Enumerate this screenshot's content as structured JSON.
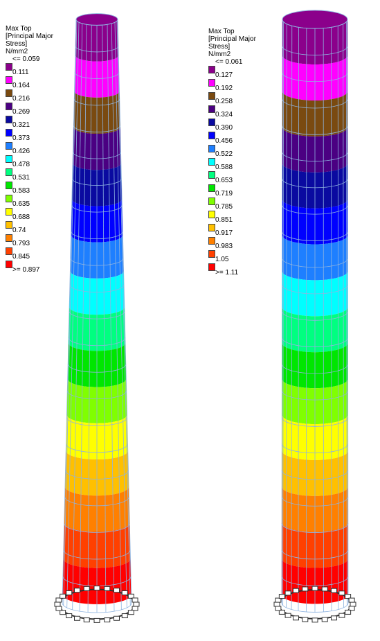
{
  "colors": [
    "#8b008b",
    "#ff00ff",
    "#7a4a10",
    "#4b0082",
    "#0a0aa0",
    "#0000ff",
    "#1e7fff",
    "#00ffff",
    "#00ff80",
    "#00e600",
    "#80ff00",
    "#ffff00",
    "#ffc000",
    "#ff8000",
    "#ff4000",
    "#ff0000"
  ],
  "mesh_color": "#8fb4e0",
  "support_color": "#303030",
  "legends": [
    {
      "title_lines": [
        "Max Top",
        "[Principal Major",
        "Stress]",
        "N/mm2"
      ],
      "labels": [
        "<= 0.059",
        "0.111",
        "0.164",
        "0.216",
        "0.269",
        "0.321",
        "0.373",
        "0.426",
        "0.478",
        "0.531",
        "0.583",
        "0.635",
        "0.688",
        "0.74",
        "0.793",
        "0.845",
        ">= 0.897"
      ]
    },
    {
      "title_lines": [
        "Max Top",
        "[Principal Major",
        "Stress]",
        "N/mm2"
      ],
      "labels": [
        "<= 0.061",
        "0.127",
        "0.192",
        "0.258",
        "0.324",
        "0.390",
        "0.456",
        "0.522",
        "0.588",
        "0.653",
        "0.719",
        "0.785",
        "0.851",
        "0.917",
        "0.983",
        "1.05",
        ">= 1.11"
      ]
    }
  ],
  "towers": [
    {
      "name": "left",
      "bands": [
        0,
        1,
        2,
        3,
        4,
        5,
        6,
        7,
        8,
        9,
        10,
        11,
        12,
        13,
        14,
        15
      ]
    },
    {
      "name": "right",
      "bands": [
        0,
        1,
        2,
        3,
        4,
        5,
        6,
        7,
        8,
        9,
        10,
        11,
        12,
        13,
        14,
        15
      ]
    }
  ]
}
